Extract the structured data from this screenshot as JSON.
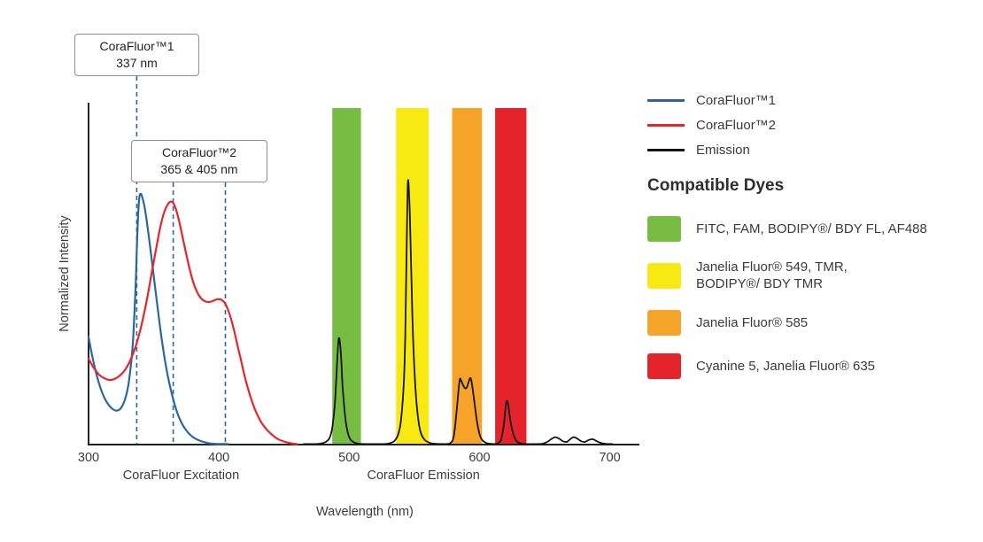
{
  "callouts": [
    {
      "title": "CoraFluor™1",
      "value": "337 nm"
    },
    {
      "title": "CoraFluor™2",
      "value": "365 & 405 nm"
    }
  ],
  "legend": {
    "series": [
      {
        "label": "CoraFluor™1",
        "color": "#2b679c"
      },
      {
        "label": "CoraFluor™2",
        "color": "#e8242b"
      },
      {
        "label": "Emission",
        "color": "#141414"
      }
    ],
    "dyes_heading": "Compatible Dyes",
    "dyes": [
      {
        "color": "#77bc43",
        "lines": [
          "FITC, FAM, BODIPY®/ BDY FL, AF488"
        ]
      },
      {
        "color": "#f9e913",
        "lines": [
          "Janelia Fluor® 549, TMR,",
          "BODIPY®/ BDY TMR"
        ]
      },
      {
        "color": "#f5a329",
        "lines": [
          "Janelia Fluor® 585"
        ]
      },
      {
        "color": "#e5232b",
        "lines": [
          "Cyanine 5, Janelia Fluor® 635"
        ]
      }
    ]
  },
  "chart_data": {
    "type": "line",
    "title": "",
    "xlabel": "Wavelength (nm)",
    "ylabel": "Normalized Intensity",
    "xlim": [
      300,
      720
    ],
    "ylim": [
      0,
      1
    ],
    "x_ticks": [
      300,
      400,
      500,
      600,
      700
    ],
    "grid": false,
    "legend_position": "right",
    "region_labels": {
      "excitation": "CoraFluor Excitation",
      "emission": "CoraFluor Emission"
    },
    "marker_color": "#2b679c",
    "markers": [
      {
        "nm": 337,
        "callout": 0
      },
      {
        "nm": 365,
        "callout": 1
      },
      {
        "nm": 405,
        "callout": 1
      }
    ],
    "filter_bands": [
      {
        "dyes": "FITC, FAM, BODIPY®/ BDY FL, AF488",
        "from_nm": 487,
        "to_nm": 509,
        "color": "#77bc43"
      },
      {
        "dyes": "Janelia Fluor® 549, TMR, BODIPY®/ BDY TMR",
        "from_nm": 536,
        "to_nm": 561,
        "color": "#f9e913"
      },
      {
        "dyes": "Janelia Fluor® 585",
        "from_nm": 579,
        "to_nm": 602,
        "color": "#f5a329"
      },
      {
        "dyes": "Cyanine 5, Janelia Fluor® 635",
        "from_nm": 612,
        "to_nm": 636,
        "color": "#e5232b"
      }
    ],
    "series": [
      {
        "name": "CoraFluor™1",
        "kind": "excitation",
        "color": "#2b679c",
        "points": [
          [
            300,
            0.32
          ],
          [
            303,
            0.26
          ],
          [
            306,
            0.21
          ],
          [
            309,
            0.17
          ],
          [
            312,
            0.14
          ],
          [
            315,
            0.12
          ],
          [
            318,
            0.107
          ],
          [
            321,
            0.101
          ],
          [
            324,
            0.105
          ],
          [
            327,
            0.124
          ],
          [
            330,
            0.165
          ],
          [
            332,
            0.22
          ],
          [
            334,
            0.3
          ],
          [
            336,
            0.46
          ],
          [
            337,
            0.575
          ],
          [
            338,
            0.68
          ],
          [
            339,
            0.735
          ],
          [
            340,
            0.745
          ],
          [
            341,
            0.738
          ],
          [
            343,
            0.705
          ],
          [
            345,
            0.655
          ],
          [
            348,
            0.565
          ],
          [
            351,
            0.47
          ],
          [
            354,
            0.375
          ],
          [
            357,
            0.29
          ],
          [
            360,
            0.22
          ],
          [
            363,
            0.165
          ],
          [
            366,
            0.12
          ],
          [
            369,
            0.085
          ],
          [
            372,
            0.06
          ],
          [
            375,
            0.042
          ],
          [
            378,
            0.029
          ],
          [
            381,
            0.02
          ],
          [
            385,
            0.012
          ],
          [
            389,
            0.007
          ],
          [
            394,
            0.003
          ],
          [
            400,
            0.001
          ],
          [
            407,
            0
          ]
        ]
      },
      {
        "name": "CoraFluor™2",
        "kind": "excitation",
        "color": "#e8242b",
        "points": [
          [
            300,
            0.255
          ],
          [
            304,
            0.228
          ],
          [
            308,
            0.208
          ],
          [
            312,
            0.197
          ],
          [
            316,
            0.192
          ],
          [
            320,
            0.195
          ],
          [
            324,
            0.205
          ],
          [
            328,
            0.222
          ],
          [
            332,
            0.25
          ],
          [
            336,
            0.29
          ],
          [
            340,
            0.345
          ],
          [
            344,
            0.415
          ],
          [
            348,
            0.5
          ],
          [
            352,
            0.585
          ],
          [
            355,
            0.645
          ],
          [
            358,
            0.69
          ],
          [
            361,
            0.715
          ],
          [
            363,
            0.722
          ],
          [
            365,
            0.718
          ],
          [
            367,
            0.7
          ],
          [
            369,
            0.672
          ],
          [
            372,
            0.62
          ],
          [
            375,
            0.565
          ],
          [
            378,
            0.515
          ],
          [
            381,
            0.475
          ],
          [
            384,
            0.448
          ],
          [
            387,
            0.432
          ],
          [
            390,
            0.425
          ],
          [
            393,
            0.424
          ],
          [
            396,
            0.428
          ],
          [
            399,
            0.432
          ],
          [
            402,
            0.43
          ],
          [
            405,
            0.418
          ],
          [
            408,
            0.39
          ],
          [
            411,
            0.35
          ],
          [
            414,
            0.3
          ],
          [
            417,
            0.25
          ],
          [
            420,
            0.2
          ],
          [
            423,
            0.158
          ],
          [
            426,
            0.122
          ],
          [
            429,
            0.093
          ],
          [
            432,
            0.07
          ],
          [
            436,
            0.048
          ],
          [
            440,
            0.032
          ],
          [
            445,
            0.017
          ],
          [
            450,
            0.009
          ],
          [
            455,
            0.004
          ],
          [
            460,
            0
          ]
        ]
      },
      {
        "name": "Emission",
        "kind": "emission",
        "color": "#141414",
        "points": [
          [
            465,
            0
          ],
          [
            472,
            0.001
          ],
          [
            478,
            0.003
          ],
          [
            482,
            0.008
          ],
          [
            485,
            0.02
          ],
          [
            487,
            0.05
          ],
          [
            489,
            0.12
          ],
          [
            490,
            0.19
          ],
          [
            491,
            0.26
          ],
          [
            492,
            0.315
          ],
          [
            493,
            0.3
          ],
          [
            494,
            0.245
          ],
          [
            495,
            0.17
          ],
          [
            497,
            0.08
          ],
          [
            499,
            0.035
          ],
          [
            501,
            0.015
          ],
          [
            504,
            0.006
          ],
          [
            508,
            0.002
          ],
          [
            514,
            0.001
          ],
          [
            520,
            0
          ],
          [
            526,
            0.001
          ],
          [
            531,
            0.004
          ],
          [
            535,
            0.012
          ],
          [
            538,
            0.035
          ],
          [
            540,
            0.08
          ],
          [
            542,
            0.19
          ],
          [
            543,
            0.32
          ],
          [
            544,
            0.55
          ],
          [
            545,
            0.775
          ],
          [
            546,
            0.74
          ],
          [
            547,
            0.62
          ],
          [
            548,
            0.46
          ],
          [
            549,
            0.32
          ],
          [
            551,
            0.16
          ],
          [
            553,
            0.075
          ],
          [
            555,
            0.035
          ],
          [
            558,
            0.014
          ],
          [
            562,
            0.005
          ],
          [
            567,
            0.002
          ],
          [
            573,
            0.001
          ],
          [
            577,
            0.003
          ],
          [
            580,
            0.02
          ],
          [
            582,
            0.08
          ],
          [
            584,
            0.165
          ],
          [
            585,
            0.195
          ],
          [
            586,
            0.19
          ],
          [
            588,
            0.172
          ],
          [
            590,
            0.168
          ],
          [
            592,
            0.19
          ],
          [
            593,
            0.198
          ],
          [
            594,
            0.185
          ],
          [
            596,
            0.13
          ],
          [
            598,
            0.07
          ],
          [
            600,
            0.032
          ],
          [
            602,
            0.014
          ],
          [
            605,
            0.005
          ],
          [
            609,
            0.002
          ],
          [
            613,
            0.002
          ],
          [
            615,
            0.006
          ],
          [
            617,
            0.02
          ],
          [
            619,
            0.07
          ],
          [
            620,
            0.11
          ],
          [
            621,
            0.13
          ],
          [
            622,
            0.12
          ],
          [
            623,
            0.09
          ],
          [
            625,
            0.045
          ],
          [
            627,
            0.02
          ],
          [
            629,
            0.008
          ],
          [
            632,
            0.003
          ],
          [
            637,
            0.001
          ],
          [
            643,
            0
          ],
          [
            648,
            0.002
          ],
          [
            652,
            0.008
          ],
          [
            655,
            0.016
          ],
          [
            658,
            0.022
          ],
          [
            661,
            0.018
          ],
          [
            664,
            0.01
          ],
          [
            667,
            0.008
          ],
          [
            669,
            0.014
          ],
          [
            672,
            0.022
          ],
          [
            675,
            0.018
          ],
          [
            678,
            0.01
          ],
          [
            681,
            0.008
          ],
          [
            684,
            0.014
          ],
          [
            687,
            0.016
          ],
          [
            690,
            0.01
          ],
          [
            693,
            0.005
          ],
          [
            697,
            0.002
          ],
          [
            702,
            0
          ]
        ]
      }
    ]
  }
}
